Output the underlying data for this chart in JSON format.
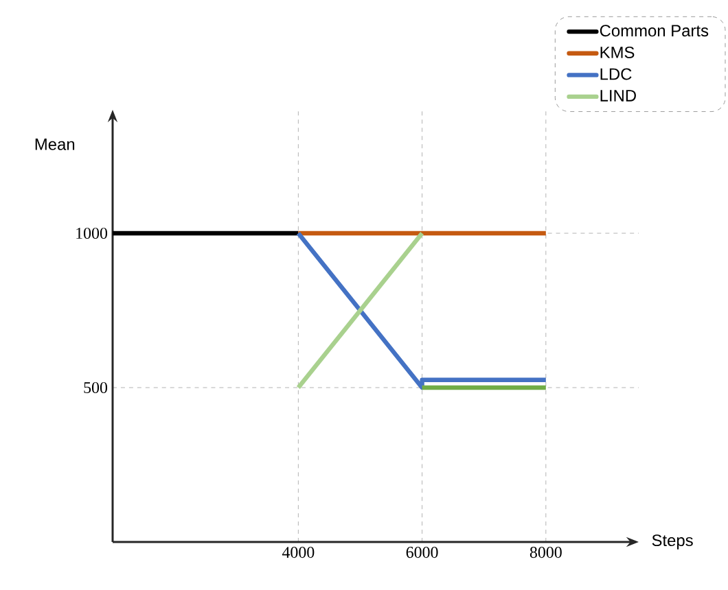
{
  "chart_data": {
    "type": "line",
    "xlabel": "Steps",
    "ylabel": "Mean",
    "xlim": [
      1000,
      9500
    ],
    "ylim": [
      0,
      1400
    ],
    "xticks": [
      4000,
      6000,
      8000
    ],
    "yticks": [
      500,
      1000
    ],
    "grid": true,
    "legend": "top right",
    "marker": "none",
    "line_style": "solid",
    "series": [
      {
        "name": "Common Parts",
        "color": "#000000",
        "x": [
          1000,
          4000
        ],
        "values": [
          1000,
          1000
        ]
      },
      {
        "name": "KMS",
        "color": "#c55a11",
        "x": [
          4000,
          8000
        ],
        "values": [
          1000,
          1000
        ]
      },
      {
        "name": "LDC",
        "color": "#4472c4",
        "x": [
          4000,
          6000,
          6000,
          8000
        ],
        "values": [
          1000,
          500,
          525,
          525
        ]
      },
      {
        "name": "LIND",
        "color": "#a9d18e",
        "x": [
          4000,
          6000
        ],
        "values": [
          500,
          1000
        ]
      },
      {
        "color": "#70ad47",
        "x": [
          6000,
          8000
        ],
        "values": [
          500,
          500
        ]
      }
    ]
  }
}
